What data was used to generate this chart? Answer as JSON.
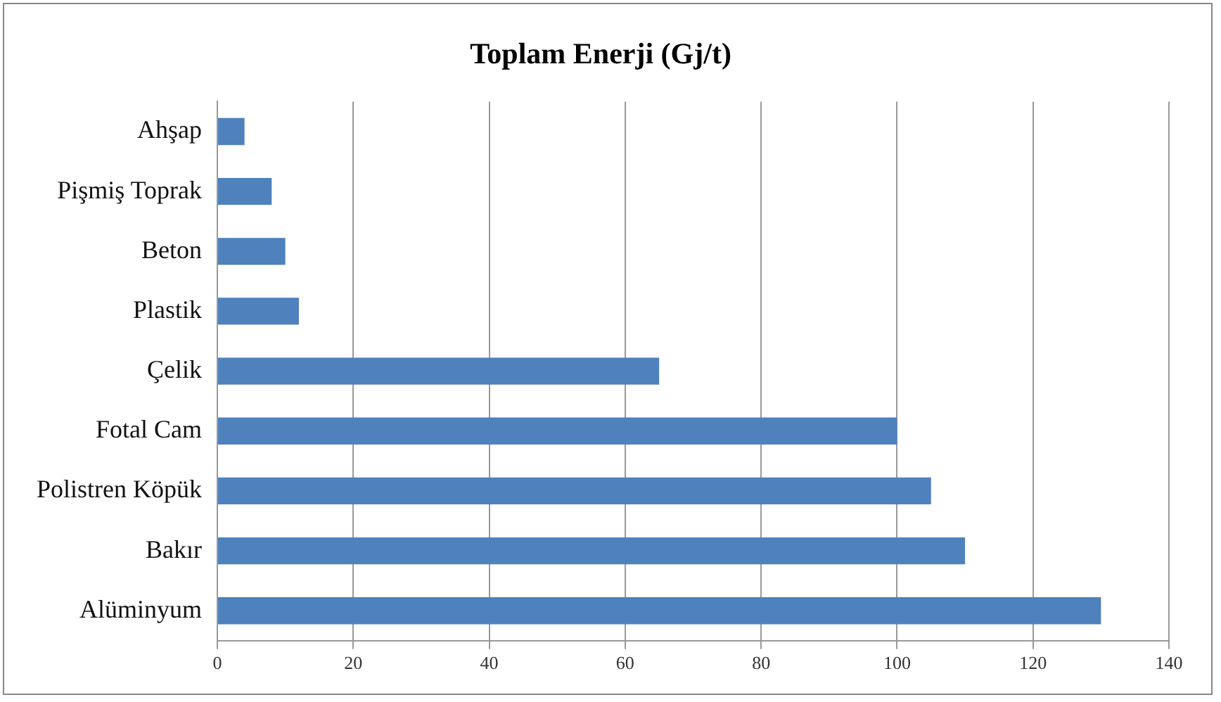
{
  "chart_data": {
    "type": "bar",
    "title": "Toplam Enerji (Gj/t)",
    "orientation": "horizontal",
    "categories": [
      "Ahşap",
      "Pişmiş Toprak",
      "Beton",
      "Plastik",
      "Çelik",
      "Fotal Cam",
      "Polistren Köpük",
      "Bakır",
      "Alüminyum"
    ],
    "values": [
      4,
      8,
      10,
      12,
      65,
      100,
      105,
      110,
      130
    ],
    "color": "#4f81bd",
    "xlim": [
      0,
      140
    ],
    "xticks": [
      0,
      20,
      40,
      60,
      80,
      100,
      120,
      140
    ],
    "grid": "x",
    "legend": false
  }
}
